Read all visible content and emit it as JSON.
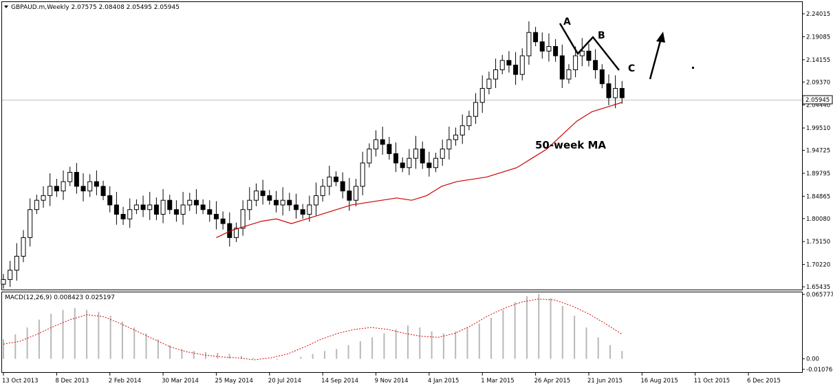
{
  "main_panel": {
    "header": "GBPAUD.m,Weekly  2.07575 2.08408 2.05495 2.05945",
    "header_arrow": "down-triangle-icon",
    "current_price_label": "2.05945",
    "price_ticks": [
      "2.24015",
      "2.19085",
      "2.14155",
      "2.09370",
      "2.04440",
      "1.99510",
      "1.94725",
      "1.89795",
      "1.84865",
      "1.80080",
      "1.75150",
      "1.70220",
      "1.65435"
    ],
    "annotations": {
      "point_a": "A",
      "point_b": "B",
      "point_c": "C",
      "ma_label": "50-week MA"
    }
  },
  "macd_panel": {
    "header": "MACD(12,26,9) 0.008423 0.025197",
    "ticks": [
      "0.065777",
      "0.00",
      "-0.010766"
    ]
  },
  "date_ticks": [
    "13 Oct 2013",
    "8 Dec 2013",
    "2 Feb 2014",
    "30 Mar 2014",
    "25 May 2014",
    "20 Jul 2014",
    "14 Sep 2014",
    "9 Nov 2014",
    "4 Jan 2015",
    "1 Mar 2015",
    "26 Apr 2015",
    "21 Jun 2015",
    "16 Aug 2015",
    "11 Oct 2015",
    "6 Dec 2015"
  ],
  "colors": {
    "candle": "#000000",
    "ma_line": "#cc0000",
    "macd_hist": "#b8b8b8",
    "macd_signal": "#dd0000",
    "grid": "#c8c8c8",
    "background": "#ffffff"
  },
  "chart_data": [
    {
      "type": "candlestick",
      "title": "GBPAUD.m,Weekly",
      "y_range": [
        1.65435,
        2.24015
      ],
      "x_range": [
        "13 Oct 2013",
        "6 Dec 2015"
      ],
      "ohlc_path": [
        1.67,
        1.69,
        1.72,
        1.76,
        1.82,
        1.84,
        1.85,
        1.87,
        1.86,
        1.88,
        1.9,
        1.87,
        1.86,
        1.88,
        1.87,
        1.85,
        1.83,
        1.81,
        1.8,
        1.82,
        1.83,
        1.82,
        1.83,
        1.81,
        1.84,
        1.82,
        1.81,
        1.83,
        1.84,
        1.83,
        1.82,
        1.81,
        1.8,
        1.79,
        1.76,
        1.78,
        1.82,
        1.84,
        1.86,
        1.85,
        1.84,
        1.83,
        1.84,
        1.83,
        1.82,
        1.81,
        1.83,
        1.85,
        1.87,
        1.89,
        1.88,
        1.86,
        1.84,
        1.87,
        1.92,
        1.95,
        1.97,
        1.96,
        1.94,
        1.92,
        1.91,
        1.93,
        1.95,
        1.92,
        1.91,
        1.93,
        1.95,
        1.97,
        1.98,
        2.0,
        2.02,
        2.05,
        2.08,
        2.1,
        2.12,
        2.14,
        2.13,
        2.11,
        2.15,
        2.2,
        2.18,
        2.16,
        2.17,
        2.15,
        2.1,
        2.12,
        2.15,
        2.16,
        2.14,
        2.12,
        2.09,
        2.06,
        2.08,
        2.06
      ],
      "series": [
        {
          "name": "50-week MA",
          "start": "25 May 2014",
          "values": [
            1.76,
            1.775,
            1.785,
            1.795,
            1.8,
            1.79,
            1.8,
            1.81,
            1.82,
            1.83,
            1.835,
            1.84,
            1.845,
            1.84,
            1.85,
            1.87,
            1.88,
            1.885,
            1.89,
            1.9,
            1.91,
            1.93,
            1.95,
            1.98,
            2.01,
            2.03,
            2.04,
            2.05
          ]
        }
      ],
      "annotations": [
        "A",
        "B",
        "C",
        "50-week MA"
      ]
    },
    {
      "type": "bar+line",
      "title": "MACD(12,26,9)",
      "y_range": [
        -0.010766,
        0.065777
      ],
      "macd_last": 0.008423,
      "signal_last": 0.025197,
      "histogram": [
        0.02,
        0.025,
        0.032,
        0.04,
        0.046,
        0.05,
        0.052,
        0.05,
        0.048,
        0.044,
        0.038,
        0.032,
        0.026,
        0.02,
        0.014,
        0.01,
        0.008,
        0.007,
        0.006,
        0.005,
        0.003,
        0.001,
        0.0,
        -0.001,
        0.0,
        0.002,
        0.005,
        0.008,
        0.01,
        0.014,
        0.018,
        0.022,
        0.026,
        0.03,
        0.034,
        0.032,
        0.028,
        0.026,
        0.028,
        0.032,
        0.036,
        0.042,
        0.05,
        0.058,
        0.064,
        0.066,
        0.062,
        0.054,
        0.044,
        0.032,
        0.022,
        0.014,
        0.008
      ],
      "signal": [
        0.015,
        0.018,
        0.025,
        0.033,
        0.04,
        0.045,
        0.043,
        0.036,
        0.028,
        0.02,
        0.012,
        0.007,
        0.004,
        0.002,
        0.001,
        -0.001,
        0.001,
        0.005,
        0.012,
        0.02,
        0.026,
        0.03,
        0.032,
        0.03,
        0.026,
        0.023,
        0.022,
        0.026,
        0.034,
        0.044,
        0.052,
        0.058,
        0.061,
        0.06,
        0.054,
        0.046,
        0.036,
        0.025
      ]
    }
  ]
}
